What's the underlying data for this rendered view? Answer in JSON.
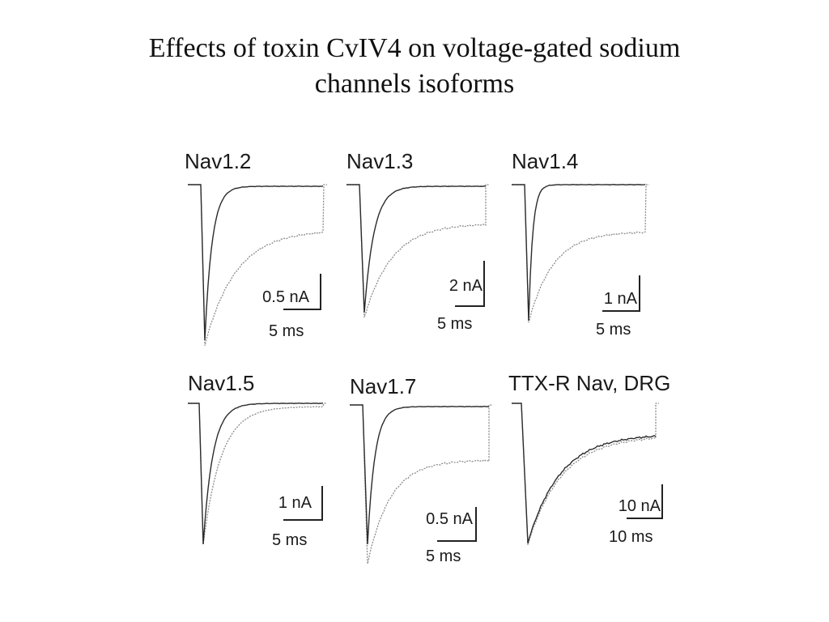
{
  "slide": {
    "title_line1": "Effects of toxin CvIV4 on voltage-gated sodium",
    "title_line2": "channels isoforms"
  },
  "figure": {
    "panels": [
      {
        "label": "Nav1.2",
        "amp_scale": "0.5 nA",
        "time_scale": "5 ms"
      },
      {
        "label": "Nav1.3",
        "amp_scale": "2 nA",
        "time_scale": "5 ms"
      },
      {
        "label": "Nav1.4",
        "amp_scale": "1 nA",
        "time_scale": "5 ms"
      },
      {
        "label": "Nav1.5",
        "amp_scale": "1 nA",
        "time_scale": "5 ms"
      },
      {
        "label": "Nav1.7",
        "amp_scale": "0.5 nA",
        "time_scale": "5 ms"
      },
      {
        "label": "TTX-R Nav, DRG",
        "amp_scale": "10 nA",
        "time_scale": "10 ms"
      }
    ],
    "colors": {
      "control_trace": "#2b2b2b",
      "toxin_trace": "#8c8c8c",
      "scale_bar": "#222222"
    }
  }
}
